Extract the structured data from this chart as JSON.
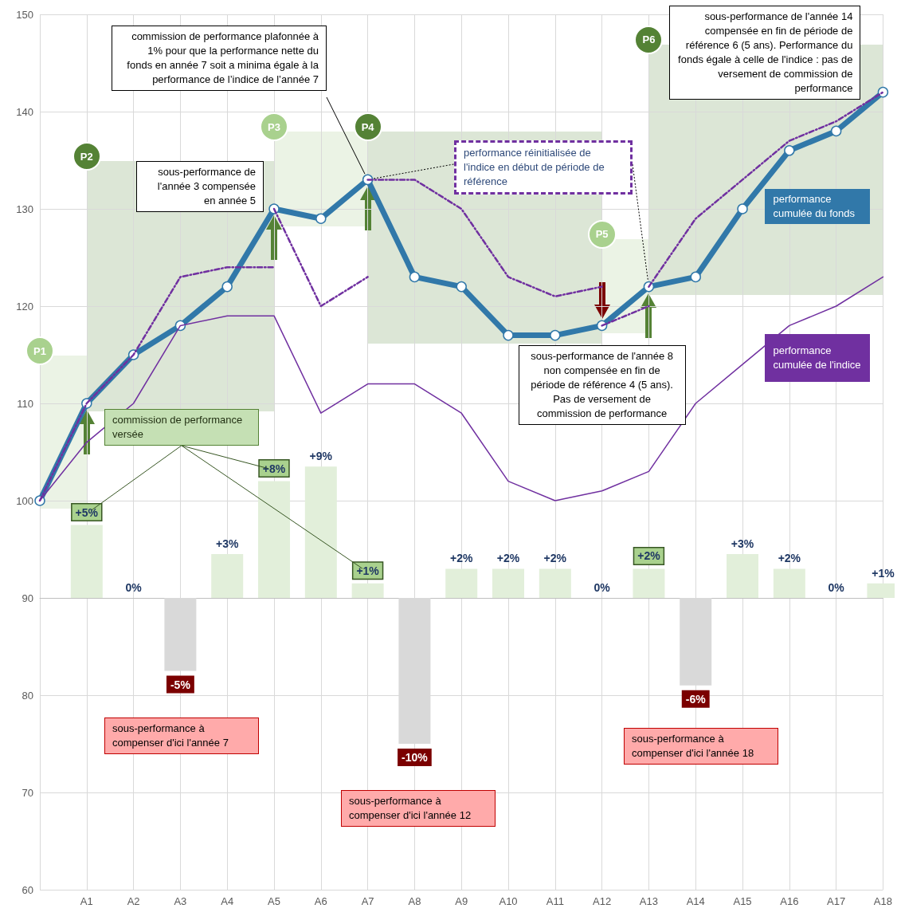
{
  "chart_data": {
    "type": "line",
    "categories": [
      null,
      "A1",
      "A2",
      "A3",
      "A4",
      "A5",
      "A6",
      "A7",
      "A8",
      "A9",
      "A10",
      "A11",
      "A12",
      "A13",
      "A14",
      "A15",
      "A16",
      "A17",
      "A18"
    ],
    "ylim": [
      60,
      150
    ],
    "yticks": [
      60,
      70,
      80,
      90,
      100,
      110,
      120,
      130,
      140,
      150
    ],
    "y2lim": [
      -20,
      40
    ],
    "grid": true,
    "legend": false,
    "series": [
      {
        "type": "bar",
        "axis": "y2",
        "color": "#e2efda",
        "values": [
          null,
          null,
          0,
          null,
          3,
          null,
          9,
          null,
          null,
          2,
          2,
          2,
          0,
          null,
          null,
          3,
          2,
          0,
          1
        ],
        "value_labels": [
          null,
          null,
          "0%",
          null,
          "+3%",
          null,
          "+9%",
          null,
          null,
          "+2%",
          "+2%",
          "+2%",
          "0%",
          null,
          null,
          "+3%",
          "+2%",
          "0%",
          "+1%"
        ]
      },
      {
        "type": "bar",
        "axis": "y2",
        "color": "#e2efda",
        "values": [
          null,
          5,
          null,
          null,
          null,
          8,
          null,
          1,
          null,
          null,
          null,
          null,
          null,
          2,
          null,
          null,
          null,
          null,
          null
        ],
        "value_labels": [
          null,
          "+5%",
          null,
          null,
          null,
          "+8%",
          null,
          "+1%",
          null,
          null,
          null,
          null,
          null,
          "+2%",
          null,
          null,
          null,
          null,
          null
        ]
      },
      {
        "type": "bar",
        "axis": "y2",
        "color": "#d9d9d9",
        "values": [
          null,
          null,
          null,
          -5,
          null,
          null,
          null,
          null,
          -10,
          null,
          null,
          null,
          null,
          null,
          -6,
          null,
          null,
          null,
          null
        ],
        "value_labels": [
          null,
          null,
          null,
          "-5%",
          null,
          null,
          null,
          null,
          "-10%",
          null,
          null,
          null,
          null,
          null,
          "-6%",
          null,
          null,
          null,
          null
        ]
      },
      {
        "name": "performance cumulée de l'indice",
        "color": "#7030a0",
        "marker": "none",
        "line_style": "solid",
        "values": [
          100,
          106,
          110,
          118,
          119,
          119,
          109,
          112,
          112,
          109,
          102,
          100,
          101,
          103,
          110,
          114,
          118,
          120,
          123
        ]
      },
      {
        "color": "#7030a0",
        "marker": "none",
        "line_style": "dashed",
        "values": [
          100,
          110,
          115,
          123,
          124,
          124,
          null,
          null,
          null,
          null,
          null,
          null,
          null,
          null,
          null,
          null,
          null,
          null,
          null
        ]
      },
      {
        "color": "#7030a0",
        "marker": "none",
        "line_style": "dashed",
        "values": [
          null,
          null,
          null,
          null,
          null,
          130,
          120,
          123,
          null,
          null,
          null,
          null,
          null,
          null,
          null,
          null,
          null,
          null,
          null
        ]
      },
      {
        "color": "#7030a0",
        "marker": "none",
        "line_style": "dashed",
        "values": [
          null,
          null,
          null,
          null,
          null,
          null,
          null,
          133,
          133,
          130,
          123,
          121,
          122,
          null,
          null,
          null,
          null,
          null,
          null
        ]
      },
      {
        "color": "#7030a0",
        "marker": "none",
        "line_style": "dashed",
        "values": [
          null,
          null,
          null,
          null,
          null,
          null,
          null,
          null,
          null,
          null,
          null,
          null,
          118,
          120,
          null,
          null,
          null,
          null,
          null
        ]
      },
      {
        "color": "#7030a0",
        "marker": "none",
        "line_style": "dashed",
        "values": [
          null,
          null,
          null,
          null,
          null,
          null,
          null,
          null,
          null,
          null,
          null,
          null,
          null,
          122,
          129,
          133,
          137,
          139,
          142
        ]
      },
      {
        "name": "performance cumulée du fonds",
        "color": "#3178a9",
        "marker": "circle",
        "line_style": "solid",
        "values": [
          100,
          110,
          115,
          118,
          122,
          130,
          129,
          133,
          123,
          122,
          117,
          117,
          118,
          122,
          123,
          130,
          136,
          138,
          142
        ]
      }
    ],
    "annotations": [
      "commission de performance plafonnée à 1% pour que la performance nette du fonds en année 7 soit a minima égale à la performance de l’indice de l’année 7",
      {
        "text": "sous-performance de l'année 3 compensée en année 5",
        "x": "A5",
        "y": 130
      },
      "performance réinitialisée de l'indice en début de période de référence",
      {
        "text": "sous-performance de l'année 14 compensée en fin de période de référence 6 (5 ans). Performance du fonds égale à celle de l'indice : pas de versement de commission de performance",
        "x": "A18",
        "y": 142
      },
      {
        "text": "sous-performance de l'année 8 non compensée en fin de période de référence 4 (5 ans). Pas de versement de commission de performance",
        "x": "A12",
        "y": 118
      },
      "commission de performance versée",
      "sous-performance à compenser d'ici l'année 7",
      "sous-performance à compenser d'ici l'année 12",
      "sous-performance à compenser d'ici l'année 18",
      "P1",
      "P2",
      "P3",
      "P4",
      "P5",
      "P6"
    ]
  }
}
